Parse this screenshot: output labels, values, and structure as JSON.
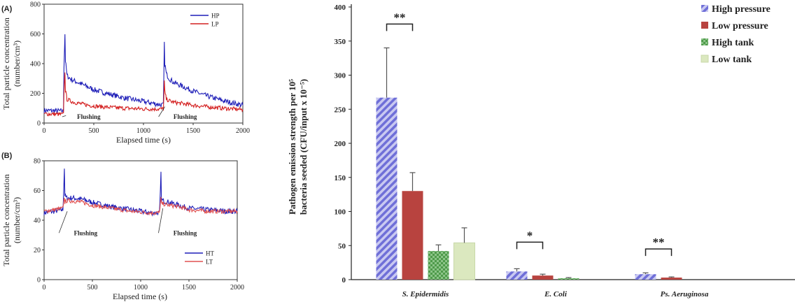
{
  "chart_data": [
    {
      "type": "line",
      "panel_label": "(A)",
      "xlabel": "Elapsed time (s)",
      "ylabel": [
        "Total particle concentration",
        "(number/cm³)"
      ],
      "xlim": [
        0,
        2000
      ],
      "ylim": [
        0,
        800
      ],
      "xticks": [
        0,
        500,
        1000,
        1500,
        2000
      ],
      "yticks": [
        0,
        200,
        400,
        600,
        800
      ],
      "legend_position": "top-right",
      "annotations": [
        {
          "text": "Flushing",
          "x": 220,
          "y": 50,
          "label_x": 450,
          "label_y": -40
        },
        {
          "text": "Flushing",
          "x": 1215,
          "y": 110,
          "label_x": 1420,
          "label_y": -40
        }
      ],
      "series": [
        {
          "name": "HP",
          "color": "#1f1fb8",
          "x": [
            0,
            195,
            200,
            210,
            215,
            230,
            260,
            300,
            400,
            500,
            600,
            800,
            1000,
            1200,
            1205,
            1210,
            1215,
            1230,
            1260,
            1300,
            1400,
            1500,
            1600,
            1800,
            2000
          ],
          "y": [
            85,
            80,
            380,
            600,
            420,
            320,
            300,
            285,
            255,
            225,
            205,
            170,
            145,
            120,
            300,
            530,
            400,
            330,
            300,
            275,
            245,
            215,
            190,
            150,
            120
          ]
        },
        {
          "name": "LP",
          "color": "#d42020",
          "x": [
            0,
            195,
            200,
            210,
            215,
            230,
            260,
            300,
            400,
            500,
            600,
            800,
            1000,
            1200,
            1205,
            1210,
            1215,
            1230,
            1260,
            1300,
            1400,
            1500,
            1600,
            1800,
            2000
          ],
          "y": [
            62,
            58,
            200,
            350,
            220,
            160,
            150,
            140,
            125,
            115,
            108,
            100,
            95,
            95,
            170,
            280,
            210,
            160,
            150,
            140,
            130,
            120,
            112,
            100,
            90
          ]
        }
      ]
    },
    {
      "type": "line",
      "panel_label": "(B)",
      "xlabel": "Elapsed time (s)",
      "ylabel": [
        "Total particle concentration",
        "(number/cm³)"
      ],
      "xlim": [
        0,
        2000
      ],
      "ylim": [
        0,
        80
      ],
      "xticks": [
        0,
        500,
        1000,
        1500,
        2000
      ],
      "yticks": [
        0,
        20,
        40,
        60,
        80
      ],
      "legend_position": "bottom-right",
      "annotations": [
        {
          "text": "Flushing",
          "x": 240,
          "y": 46,
          "label_x": 430,
          "label_y": 30
        },
        {
          "text": "Flushing",
          "x": 1230,
          "y": 48,
          "label_x": 1460,
          "label_y": 30
        }
      ],
      "series": [
        {
          "name": "HT",
          "color": "#1f1fb8",
          "x": [
            0,
            100,
            195,
            200,
            210,
            215,
            230,
            300,
            400,
            500,
            700,
            900,
            1100,
            1195,
            1200,
            1210,
            1215,
            1230,
            1300,
            1400,
            1500,
            1700,
            1900,
            2000
          ],
          "y": [
            45,
            46,
            47,
            55,
            75,
            57,
            55,
            55,
            54,
            52,
            49,
            47,
            45,
            45,
            52,
            71,
            54,
            53,
            52,
            50,
            48,
            47,
            46,
            46
          ]
        },
        {
          "name": "LT",
          "color": "#e05050",
          "x": [
            0,
            100,
            195,
            200,
            210,
            215,
            230,
            300,
            400,
            500,
            700,
            900,
            1100,
            1195,
            1200,
            1210,
            1215,
            1230,
            1300,
            1400,
            1500,
            1700,
            1900,
            2000
          ],
          "y": [
            46,
            47,
            48,
            51,
            56,
            52,
            53,
            53,
            52,
            50,
            48,
            46,
            45,
            45,
            49,
            55,
            51,
            51,
            50,
            49,
            47,
            46,
            46,
            46
          ]
        }
      ]
    },
    {
      "type": "bar",
      "ylabel": [
        "Pathogen emission strength per 10⁵",
        "bacteria seeded (CFU/input x 10⁻⁵)"
      ],
      "ylim": [
        0,
        400
      ],
      "yticks": [
        0,
        50,
        100,
        150,
        200,
        250,
        300,
        350,
        400
      ],
      "categories": [
        "S. Epidermidis",
        "E. Coli",
        "Ps. Aeruginosa"
      ],
      "legend_position": "top-right",
      "series": [
        {
          "name": "High pressure",
          "color": "#8a8ae0",
          "pattern": "diagonal-hatch",
          "values": [
            267,
            12,
            8
          ],
          "errors": [
            73,
            4,
            2
          ]
        },
        {
          "name": "Low pressure",
          "color": "#c0403c",
          "pattern": "solid",
          "values": [
            130,
            6,
            3
          ],
          "errors": [
            27,
            2,
            1
          ]
        },
        {
          "name": "High  tank",
          "color": "#5ea05a",
          "pattern": "checker",
          "values": [
            42,
            2,
            0
          ],
          "errors": [
            9,
            1,
            0
          ]
        },
        {
          "name": "Low  tank",
          "color": "#dbe8bf",
          "pattern": "solid",
          "values": [
            54,
            0,
            0
          ],
          "errors": [
            22,
            0,
            0
          ]
        }
      ],
      "significance": [
        {
          "category_index": 0,
          "pair": [
            0,
            1
          ],
          "label": "**",
          "y": 375
        },
        {
          "category_index": 1,
          "pair": [
            0,
            1
          ],
          "label": "*",
          "y": 55
        },
        {
          "category_index": 2,
          "pair": [
            0,
            1
          ],
          "label": "**",
          "y": 45
        }
      ]
    }
  ]
}
